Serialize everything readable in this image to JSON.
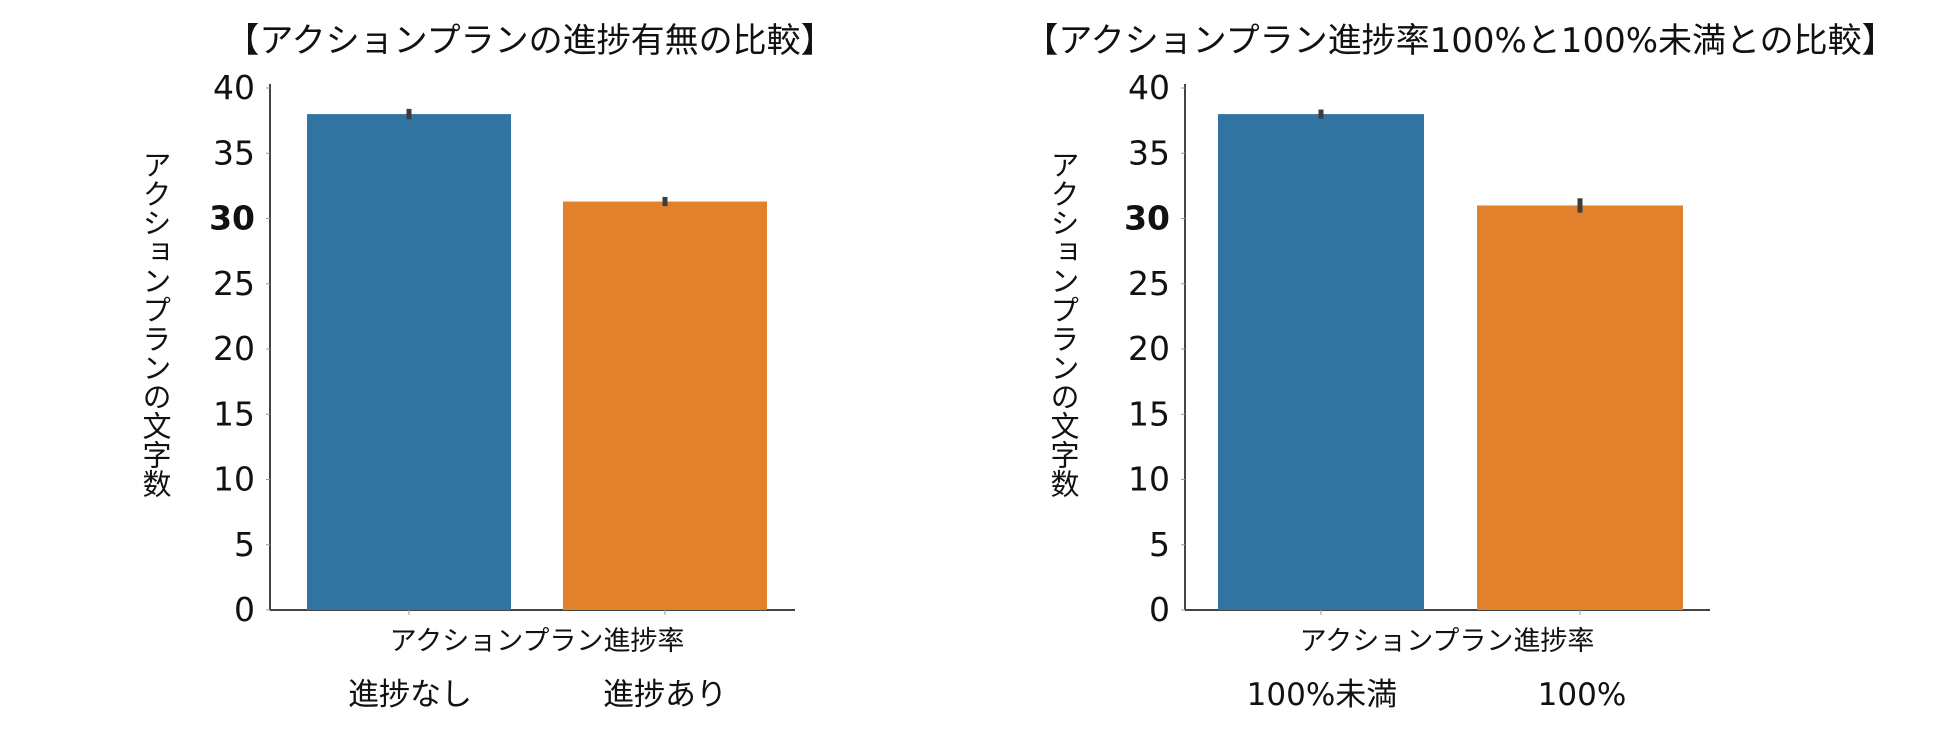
{
  "chart_data": [
    {
      "type": "bar",
      "title": "【アクションプランの進捗有無の比較】",
      "xlabel": "アクションプラン進捗率",
      "ylabel": "アクションプランの文字数",
      "categories": [
        "進捗なし",
        "進捗あり"
      ],
      "values": [
        38.0,
        31.3
      ],
      "errors": [
        0.4,
        0.35
      ],
      "colors": [
        "#3274a1",
        "#e1812c"
      ],
      "ylim": [
        0,
        40
      ],
      "yticks": [
        "0",
        "5",
        "10",
        "15",
        "20",
        "25",
        "30",
        "35",
        "40"
      ],
      "bold_tick": "30",
      "grid": false,
      "legend": "none"
    },
    {
      "type": "bar",
      "title": "【アクションプラン進捗率100%と100%未満との比較】",
      "xlabel": "アクションプラン進捗率",
      "ylabel": "アクションプランの文字数",
      "categories": [
        "100%未満",
        "100%"
      ],
      "values": [
        38.0,
        31.0
      ],
      "errors": [
        0.35,
        0.55
      ],
      "colors": [
        "#3274a1",
        "#e1812c"
      ],
      "ylim": [
        0,
        40
      ],
      "yticks": [
        "0",
        "5",
        "10",
        "15",
        "20",
        "25",
        "30",
        "35",
        "40"
      ],
      "bold_tick": "30",
      "grid": false,
      "legend": "none"
    }
  ]
}
